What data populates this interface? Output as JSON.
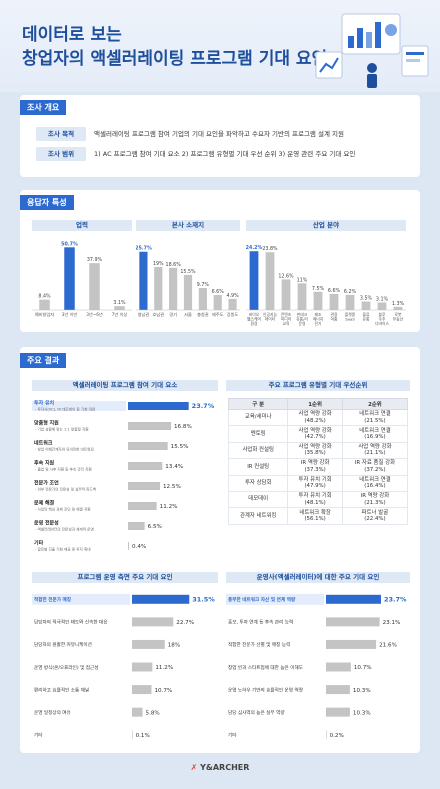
{
  "header": {
    "title_line1": "데이터로 보는",
    "title_line2": "창업자의 액셀러레이팅 프로그램 기대 요인"
  },
  "overview": {
    "section_title": "조사 개요",
    "purpose_label": "조사 목적",
    "purpose_text": "액셀러레이팅 프로그램 참여 기업의 기대 요인을 파악하고 수요자 기반의 프로그램 설계 지원",
    "scope_label": "조사 범위",
    "scope_text": "1) AC 프로그램 참여 기대 요소   2) 프로그램 유형별 기대 우선 순위   3) 운영 관련 주요 기대 요인"
  },
  "respondents": {
    "section_title": "응답자 특성"
  },
  "results": {
    "section_title": "주요 결과",
    "table_title": "주요 프로그램 유형별 기대 우선순위",
    "table_headers": [
      "구 분",
      "1순위",
      "2순위"
    ],
    "table_rows": [
      [
        "교육/세미나",
        "사업 역량 강화\n(48.2%)",
        "네트워크 연결\n(21.5%)"
      ],
      [
        "멘토링",
        "사업 역량 강화\n(42.7%)",
        "네트워크 연결\n(16.9%)"
      ],
      [
        "사업화 컨설팅",
        "사업 역량 강화\n(35.8%)",
        "사업 역량 강화\n(21.1%)"
      ],
      [
        "IR 컨설팅",
        "IR 역량 강화\n(37.3%)",
        "IR 자료 품질 강화\n(37.2%)"
      ],
      [
        "투자 상담회",
        "투자 유치 기회\n(47.9%)",
        "네트워크 연결\n(16.4%)"
      ],
      [
        "데모데이",
        "투자 유치 기회\n(48.1%)",
        "IR 역량 강화\n(21.3%)"
      ],
      [
        "관계자 네트워킹",
        "네트워크 확장\n(56.1%)",
        "파트너 발굴\n(22.4%)"
      ]
    ]
  },
  "footer": {
    "logo_mark": "✗",
    "brand": "Y&ARCHER"
  },
  "colors": {
    "accent": "#2d6ad0",
    "title": "#1e4f9c",
    "bar_gray": "#c4c4c4",
    "header_bg": "#dfe8f5",
    "page_bg": "#dde6f3"
  },
  "chart_data": [
    {
      "type": "bar",
      "title": "업력",
      "categories": [
        "예비창업자",
        "3년 이만",
        "3년~6년",
        "7년 이상"
      ],
      "values": [
        8.4,
        50.7,
        37.9,
        3.1
      ],
      "highlight": 1,
      "ylim": [
        0,
        55
      ]
    },
    {
      "type": "bar",
      "title": "본사 소재지",
      "categories": [
        "영남권",
        "호남권",
        "경기",
        "서울",
        "충청권",
        "제주도",
        "강원도"
      ],
      "values": [
        25.7,
        19,
        18.6,
        15.5,
        9.7,
        6.6,
        4.9
      ],
      "highlight": 0,
      "ylim": [
        0,
        30
      ]
    },
    {
      "type": "bar",
      "title": "산업 분야",
      "categories": [
        "바이오 헬스케어 환경",
        "인공지능 데이터",
        "콘텐츠 미디어 교육",
        "핀테크 유통/리 운영",
        "제조 에너지 전기",
        "관광 여홍",
        "플랫폼 SaaS",
        "물류 유통",
        "블루 우주 디바이스",
        "로봇 부동산"
      ],
      "values": [
        24.2,
        23.8,
        12.6,
        11,
        7.5,
        6.6,
        6.2,
        3.5,
        3.1,
        1.3
      ],
      "highlight": 0,
      "ylim": [
        0,
        28
      ]
    },
    {
      "type": "bar",
      "orientation": "horizontal",
      "title": "액셀러레이팅 프로그램 참여 기대 요소",
      "categories": [
        "투자 유치",
        "맞춤형 지원",
        "네트워크",
        "후속 지원",
        "전문가 조언",
        "문제 해결",
        "운영 전문성",
        "기타"
      ],
      "subtitles": [
        "- 투자사(VC), IR 데모데이 등 기회 마련",
        "- 기업 상황에 맞는 1:1 맞춤형 지원",
        "- 창업 이해관계자와 유의미한 네트워킹",
        "- 졸업 및 사후 지원 등 후속 관리 지원",
        "- 외부 전문가의 전문성 및 실무적 피드백",
        "- 사업의 핵심 과제 진단 및 해결 지원",
        "- 액셀러레이터의 전문성과 체계적 운영",
        "- 글로벌 진출 기회 제공 및 투자 확대"
      ],
      "values": [
        23.7,
        16.8,
        15.5,
        13.4,
        12.5,
        11.2,
        6.5,
        0.4
      ],
      "highlight": 0,
      "xlim": [
        0,
        25
      ]
    },
    {
      "type": "bar",
      "orientation": "horizontal",
      "title": "프로그램 운영 측면 주요 기대 요인",
      "categories": [
        "적합한 전문가 매칭",
        "담당자의 적극적인 태도와 신속한 대응",
        "담당자의 원활한 커뮤니케이션",
        "운영 방식(온/오프라인) 및 접근성",
        "편리하고 효율적인 소통 채널",
        "운영 일정상의 여유",
        "기타"
      ],
      "values": [
        31.5,
        22.7,
        18,
        11.2,
        10.7,
        5.8,
        0.1
      ],
      "highlight": 0,
      "xlim": [
        0,
        33
      ]
    },
    {
      "type": "bar",
      "orientation": "horizontal",
      "title": "운영사(액셀러레이터)에 대한 주요 기대 요인",
      "categories": [
        "풍부한 네트워크 자산 및 연계 역량",
        "홍보, 투자 연계 등 후속 관리 능력",
        "적합한 전문가 선별 및 매칭 능력",
        "창업 빈과 스타트업에 대한 높은 이해도",
        "운영 노하우 기반의 효율적인 운영 역량",
        "담당 심사역의 높은 실무 역량",
        "기타"
      ],
      "values": [
        23.7,
        23.1,
        21.6,
        10.7,
        10.3,
        10.3,
        0.2
      ],
      "highlight": 0,
      "xlim": [
        0,
        25
      ]
    }
  ]
}
